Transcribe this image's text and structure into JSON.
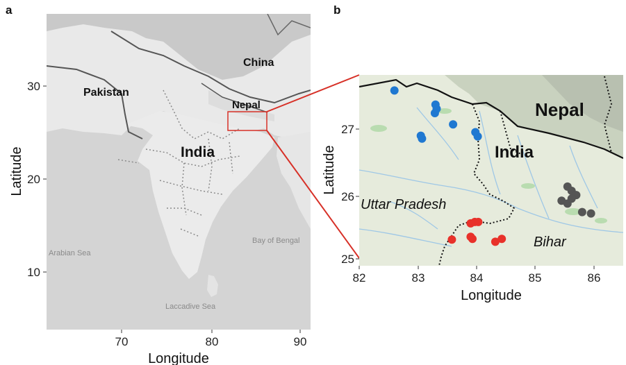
{
  "panels": {
    "a": {
      "label": "a",
      "xlabel": "Longitude",
      "ylabel": "Latitude",
      "x_ticks": [
        "70",
        "80",
        "90"
      ],
      "y_ticks": [
        "30",
        "20",
        "10"
      ],
      "countries": [
        "China",
        "Pakistan",
        "Nepal",
        "India"
      ],
      "seas": [
        "Arabian Sea",
        "Bay of Bengal",
        "Laccadive Sea"
      ]
    },
    "b": {
      "label": "b",
      "xlabel": "Longitude",
      "ylabel": "Latitude",
      "x_ticks": [
        "82",
        "83",
        "84",
        "85",
        "86"
      ],
      "y_ticks": [
        "27",
        "26",
        "25"
      ],
      "countries": [
        "Nepal",
        "India"
      ],
      "states": [
        "Uttar Pradesh",
        "Bihar"
      ]
    }
  },
  "colors": {
    "blue_points": "#1f78d1",
    "red_points": "#e8312a",
    "grey_points": "#555555",
    "inset_box": "#d73027"
  },
  "chart_data": {
    "type": "scatter",
    "xlim": [
      82,
      86.5
    ],
    "ylim": [
      24.9,
      27.6
    ],
    "series": [
      {
        "color": "#1f78d1",
        "points": [
          [
            82.6,
            27.38
          ],
          [
            83.3,
            27.18
          ],
          [
            83.32,
            27.12
          ],
          [
            83.29,
            27.06
          ],
          [
            83.6,
            26.9
          ],
          [
            83.05,
            26.74
          ],
          [
            83.07,
            26.7
          ],
          [
            83.98,
            26.79
          ],
          [
            84.02,
            26.73
          ]
        ]
      },
      {
        "color": "#e8312a",
        "points": [
          [
            83.58,
            25.27
          ],
          [
            83.9,
            25.5
          ],
          [
            83.97,
            25.52
          ],
          [
            84.03,
            25.52
          ],
          [
            83.9,
            25.31
          ],
          [
            83.93,
            25.28
          ],
          [
            84.32,
            25.24
          ],
          [
            84.43,
            25.28
          ]
        ]
      },
      {
        "color": "#555555",
        "points": [
          [
            85.55,
            26.02
          ],
          [
            85.62,
            25.96
          ],
          [
            85.7,
            25.9
          ],
          [
            85.45,
            25.82
          ],
          [
            85.55,
            25.78
          ],
          [
            85.62,
            25.85
          ],
          [
            85.8,
            25.66
          ],
          [
            85.95,
            25.64
          ]
        ]
      }
    ]
  }
}
